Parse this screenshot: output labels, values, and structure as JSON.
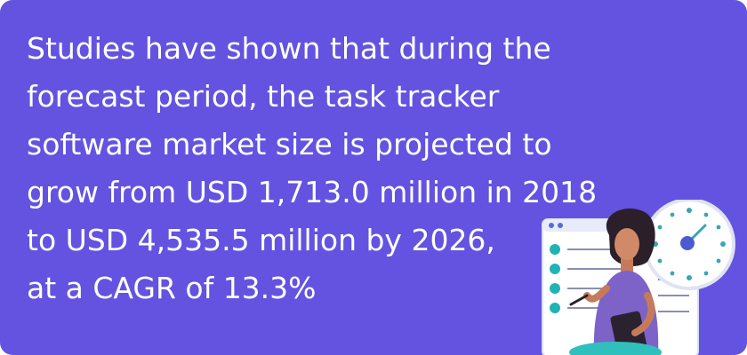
{
  "headline": {
    "lines": [
      "Studies have shown that during the",
      "forecast period, the task tracker",
      "software market size is projected to",
      "grow from USD 1,713.0 million in 2018",
      "to USD 4,535.5 million by 2026,",
      "at a CAGR of 13.3%"
    ]
  },
  "colors": {
    "background": "#6353e0",
    "text": "#ffffff",
    "accent_teal": "#1fb3b6",
    "clock_hand": "#3aa6b3"
  },
  "icons": {
    "illustration": "woman-with-task-checklist-and-clock-illustration"
  }
}
